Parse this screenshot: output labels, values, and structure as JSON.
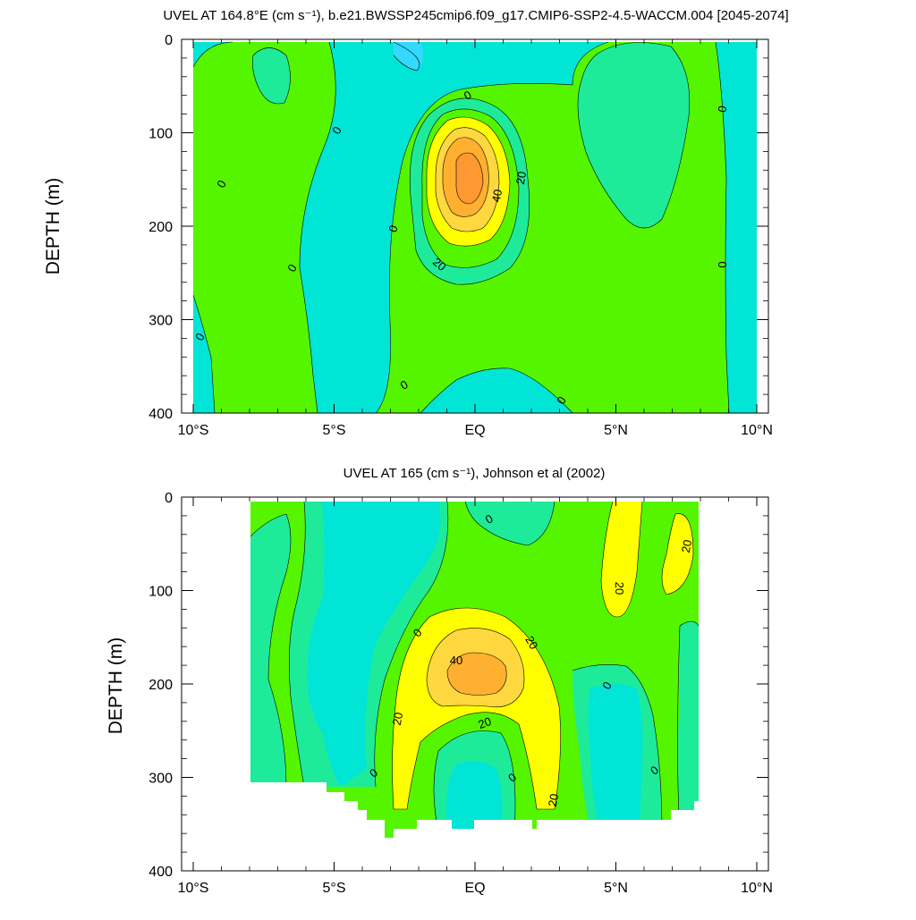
{
  "chart_data": [
    {
      "type": "contour",
      "title": "UVEL AT 164.8°E (cm s⁻¹), b.e21.BWSSP245cmip6.f09_g17.CMIP6-SSP2-4.5-WACCM.004 [2045-2074]",
      "ylabel": "DEPTH (m)",
      "xlabel": "",
      "xlim": [
        -10,
        10
      ],
      "ylim": [
        400,
        0
      ],
      "xticks": [
        "10°S",
        "5°S",
        "EQ",
        "5°N",
        "10°N"
      ],
      "yticks": [
        "0",
        "100",
        "200",
        "300",
        "400"
      ],
      "contour_levels": [
        -10,
        0,
        10,
        20,
        30,
        40,
        50
      ],
      "colors": {
        "neg": "#00E5D6",
        "neg_strong": "#33D9FF",
        "c0_10": "#1EEB9A",
        "c10_20": "#55F500",
        "c20_30": "#FFFF00",
        "c30_40": "#FFD840",
        "c40_50": "#FFB030",
        "c50_plus": "#FF9830"
      },
      "core": {
        "lat": 0,
        "depth": 165,
        "max_speed": 50
      },
      "contour_labels": [
        "0",
        "0",
        "0",
        "0",
        "0",
        "0",
        "0",
        "0",
        "0",
        "0",
        "20",
        "20",
        "40"
      ]
    },
    {
      "type": "contour",
      "title": "UVEL AT 165 (cm s⁻¹), Johnson et al (2002)",
      "ylabel": "DEPTH (m)",
      "xlabel": "",
      "xlim": [
        -10,
        10
      ],
      "ylim": [
        400,
        0
      ],
      "xticks": [
        "10°S",
        "5°S",
        "EQ",
        "5°N",
        "10°N"
      ],
      "yticks": [
        "0",
        "100",
        "200",
        "300",
        "400"
      ],
      "contour_levels": [
        -10,
        0,
        10,
        20,
        30,
        40,
        50
      ],
      "data_extent": {
        "lat": [
          -8,
          8
        ],
        "depth": [
          0,
          360
        ]
      },
      "core": {
        "lat": 0,
        "depth": 185,
        "max_speed": 45
      },
      "contour_labels": [
        "0",
        "0",
        "0",
        "0",
        "0",
        "0",
        "20",
        "20",
        "20",
        "20",
        "20",
        "20",
        "40"
      ]
    }
  ]
}
